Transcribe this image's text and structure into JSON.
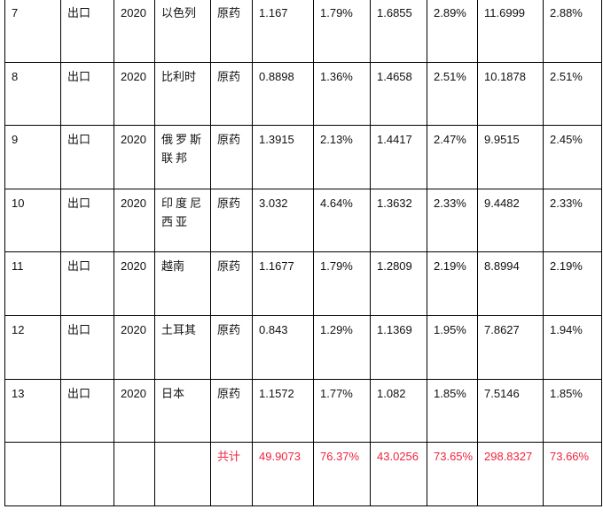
{
  "rows": [
    [
      "7",
      "出口",
      "2020",
      "以色列",
      "原药",
      "1.167",
      "1.79%",
      "1.6855",
      "2.89%",
      "11.6999",
      "2.88%"
    ],
    [
      "8",
      "出口",
      "2020",
      "比利时",
      "原药",
      "0.8898",
      "1.36%",
      "1.4658",
      "2.51%",
      "10.1878",
      "2.51%"
    ],
    [
      "9",
      "出口",
      "2020",
      "俄罗斯联邦",
      "原药",
      "1.3915",
      "2.13%",
      "1.4417",
      "2.47%",
      "9.9515",
      "2.45%"
    ],
    [
      "10",
      "出口",
      "2020",
      "印度尼西亚",
      "原药",
      "3.032",
      "4.64%",
      "1.3632",
      "2.33%",
      "9.4482",
      "2.33%"
    ],
    [
      "11",
      "出口",
      "2020",
      "越南",
      "原药",
      "1.1677",
      "1.79%",
      "1.2809",
      "2.19%",
      "8.8994",
      "2.19%"
    ],
    [
      "12",
      "出口",
      "2020",
      "土耳其",
      "原药",
      "0.843",
      "1.29%",
      "1.1369",
      "1.95%",
      "7.8627",
      "1.94%"
    ],
    [
      "13",
      "出口",
      "2020",
      "日本",
      "原药",
      "1.1572",
      "1.77%",
      "1.082",
      "1.85%",
      "7.5146",
      "1.85%"
    ]
  ],
  "total": [
    "",
    "",
    "",
    "",
    "共计",
    "49.9073",
    "76.37%",
    "43.0256",
    "73.65%",
    "298.8327",
    "73.66%"
  ],
  "colors": {
    "total_text": "#f0243c",
    "border": "#000000"
  }
}
